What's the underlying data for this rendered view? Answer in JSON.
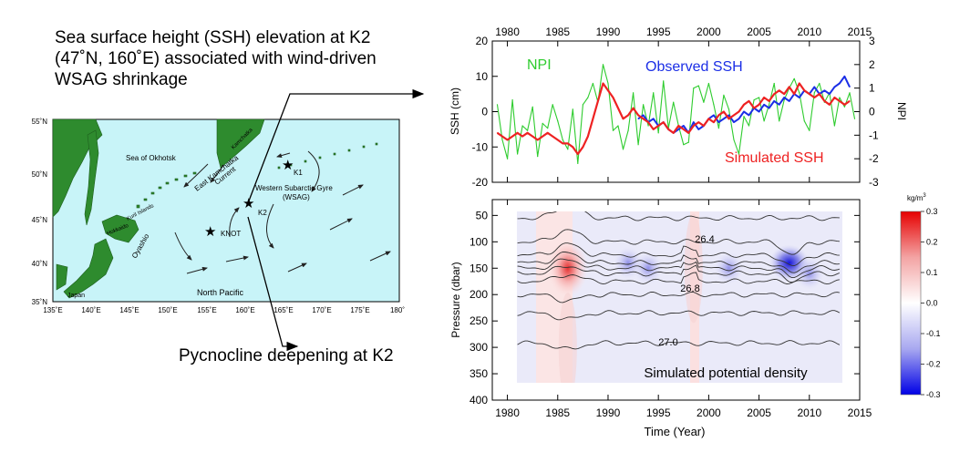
{
  "headline": {
    "line1": "Sea surface height (SSH) elevation at K2",
    "line2": "(47˚N, 160˚E) associated with wind-driven",
    "line3": "WSAG shrinkage"
  },
  "footline": "Pycnocline deepening at K2",
  "colors": {
    "land": "#2e8b2e",
    "ocean": "#c8f4f8",
    "npi": "#2ecc2e",
    "observed": "#1b2ee6",
    "simulated": "#ee2222",
    "contour": "#333333"
  },
  "map": {
    "lat_labels": [
      "55˚N",
      "50˚N",
      "45˚N",
      "40˚N",
      "35˚N"
    ],
    "lon_labels": [
      "135˚E",
      "140˚E",
      "145˚E",
      "150˚E",
      "155˚E",
      "160˚E",
      "165˚E",
      "170˚E",
      "175˚E",
      "180˚"
    ],
    "labels": {
      "okhotsk": "Sea of Okhotsk",
      "kamchatka": "Kamchatka",
      "east_kamchatka_1": "East Kamchatka",
      "east_kamchatka_2": "Current",
      "wsag_1": "Western Subarctic Gyre",
      "wsag_2": "(WSAG)",
      "kuril": "Kuril Islands",
      "hokkaido": "Hokkaido",
      "oyashio": "Oyashio",
      "north_pacific": "North Pacific",
      "japan": "Japan",
      "k1": "K1",
      "k2": "K2",
      "knot": "KNOT"
    }
  },
  "chart_data": [
    {
      "type": "line",
      "title": "",
      "x_top_ticks": [
        "1980",
        "1985",
        "1990",
        "1995",
        "2000",
        "2005",
        "2010",
        "2015"
      ],
      "xlim": [
        1978.5,
        2015
      ],
      "ylabel": "SSH (cm)",
      "ylim": [
        -20,
        20
      ],
      "y_ticks": [
        "20",
        "10",
        "0",
        "-10",
        "-20"
      ],
      "y2label": "NPI",
      "y2lim": [
        -3,
        3
      ],
      "y2_ticks": [
        "3",
        "2",
        "1",
        "0",
        "-1",
        "-2",
        "-3"
      ],
      "legend": [
        "NPI",
        "Observed SSH",
        "Simulated SSH"
      ],
      "series": [
        {
          "name": "NPI",
          "axis": "right",
          "x": [
            1979,
            1979.5,
            1980,
            1980.5,
            1981,
            1981.5,
            1982,
            1982.5,
            1983,
            1983.5,
            1984,
            1984.5,
            1985,
            1985.5,
            1986,
            1986.5,
            1987,
            1987.5,
            1988,
            1988.5,
            1989,
            1989.5,
            1990,
            1990.5,
            1991,
            1991.5,
            1992,
            1992.5,
            1993,
            1993.5,
            1994,
            1994.5,
            1995,
            1995.5,
            1996,
            1996.5,
            1997,
            1997.5,
            1998,
            1998.5,
            1999,
            1999.5,
            2000,
            2000.5,
            2001,
            2001.5,
            2002,
            2002.5,
            2003,
            2003.5,
            2004,
            2004.5,
            2005,
            2005.5,
            2006,
            2006.5,
            2007,
            2007.5,
            2008,
            2008.5,
            2009,
            2009.5,
            2010,
            2010.5,
            2011,
            2011.5,
            2012,
            2012.5,
            2013,
            2013.5,
            2014,
            2014.5
          ],
          "values": [
            0.3,
            -1.2,
            -2.0,
            0.5,
            -1.8,
            -0.6,
            -0.8,
            0.2,
            -1.9,
            -0.5,
            -0.7,
            0.3,
            -0.4,
            -1.2,
            -1.6,
            0.1,
            -2.2,
            0.3,
            0.6,
            1.2,
            0.4,
            2.0,
            1.2,
            -0.8,
            -0.6,
            -1.6,
            -0.8,
            0.8,
            -1.4,
            0.3,
            -0.6,
            0.8,
            -0.9,
            1.3,
            -0.7,
            0.4,
            -0.6,
            -1.4,
            -1.3,
            1.0,
            1.1,
            0.4,
            1.2,
            0.3,
            -0.7,
            0.7,
            0.1,
            -1.2,
            -1.8,
            -0.2,
            -0.6,
            0.5,
            0.6,
            -0.4,
            0.3,
            1.2,
            -0.4,
            0.5,
            1.0,
            1.4,
            0.8,
            -0.4,
            -0.8,
            0.8,
            1.2,
            0.4,
            0.8,
            -0.6,
            0.6,
            0.2,
            0.8,
            -0.3
          ]
        },
        {
          "name": "Observed SSH",
          "axis": "left",
          "x": [
            1993,
            1993.5,
            1994,
            1994.5,
            1995,
            1995.5,
            1996,
            1996.5,
            1997,
            1997.5,
            1998,
            1998.5,
            1999,
            1999.5,
            2000,
            2000.5,
            2001,
            2001.5,
            2002,
            2002.5,
            2003,
            2003.5,
            2004,
            2004.5,
            2005,
            2005.5,
            2006,
            2006.5,
            2007,
            2007.5,
            2008,
            2008.5,
            2009,
            2009.5,
            2010,
            2010.5,
            2011,
            2011.5,
            2012,
            2012.5,
            2013,
            2013.5,
            2014
          ],
          "values": [
            -2,
            -1,
            -3,
            -2,
            -4,
            -3,
            -5,
            -6,
            -5,
            -4,
            -6,
            -3,
            -5,
            -4,
            -2,
            -1,
            -3,
            -2,
            -1,
            -3,
            -2,
            0,
            -1,
            1,
            0,
            2,
            1,
            3,
            2,
            4,
            3,
            5,
            4,
            6,
            5,
            7,
            5,
            6,
            5,
            7,
            8,
            10,
            7
          ]
        },
        {
          "name": "Simulated SSH",
          "axis": "left",
          "x": [
            1979,
            1979.5,
            1980,
            1980.5,
            1981,
            1981.5,
            1982,
            1982.5,
            1983,
            1983.5,
            1984,
            1984.5,
            1985,
            1985.5,
            1986,
            1986.5,
            1987,
            1987.5,
            1988,
            1988.5,
            1989,
            1989.5,
            1990,
            1990.5,
            1991,
            1991.5,
            1992,
            1992.5,
            1993,
            1993.5,
            1994,
            1994.5,
            1995,
            1995.5,
            1996,
            1996.5,
            1997,
            1997.5,
            1998,
            1998.5,
            1999,
            1999.5,
            2000,
            2000.5,
            2001,
            2001.5,
            2002,
            2002.5,
            2003,
            2003.5,
            2004,
            2004.5,
            2005,
            2005.5,
            2006,
            2006.5,
            2007,
            2007.5,
            2008,
            2008.5,
            2009,
            2009.5,
            2010,
            2010.5,
            2011,
            2011.5,
            2012,
            2012.5,
            2013,
            2013.5,
            2014
          ],
          "values": [
            -6,
            -7,
            -8,
            -7,
            -6,
            -7,
            -6,
            -7,
            -8,
            -7,
            -6,
            -7,
            -8,
            -9,
            -9,
            -10,
            -12,
            -10,
            -7,
            -2,
            3,
            8,
            6,
            4,
            1,
            -2,
            -1,
            1,
            -1,
            -2,
            -3,
            -5,
            -4,
            -3,
            -5,
            -6,
            -4,
            -5,
            -6,
            -4,
            -3,
            -4,
            -2,
            -3,
            -1,
            0,
            -2,
            -1,
            0,
            2,
            3,
            1,
            2,
            4,
            3,
            5,
            6,
            5,
            7,
            5,
            8,
            6,
            5,
            4,
            5,
            3,
            2,
            4,
            3,
            2,
            3
          ]
        }
      ]
    },
    {
      "type": "heatmap",
      "title": "Simulated potential density",
      "xlabel": "Time (Year)",
      "x_ticks": [
        "1980",
        "1985",
        "1990",
        "1995",
        "2000",
        "2005",
        "2010",
        "2015"
      ],
      "xlim": [
        1978.5,
        2015
      ],
      "ylabel": "Pressure (dbar)",
      "ylim": [
        400,
        20
      ],
      "y_ticks": [
        "50",
        "100",
        "150",
        "200",
        "250",
        "300",
        "350",
        "400"
      ],
      "contour_labels": [
        "26.4",
        "26.8",
        "27.0"
      ],
      "colorbar": {
        "unit": "kg/m",
        "unit_sup": "3",
        "range": [
          -0.3,
          0.3
        ],
        "ticks": [
          "0.3",
          "0.2",
          "0.1",
          "0.0",
          "-0.1",
          "-0.2",
          "-0.3"
        ]
      },
      "anomalies": [
        {
          "year": 1986,
          "pressure": 150,
          "value": 0.3
        },
        {
          "year": 1986,
          "pressure": 300,
          "value": 0.04
        },
        {
          "year": 1992,
          "pressure": 140,
          "value": -0.08
        },
        {
          "year": 1994,
          "pressure": 150,
          "value": -0.15
        },
        {
          "year": 1998.5,
          "pressure": 150,
          "value": 0.08
        },
        {
          "year": 2002,
          "pressure": 150,
          "value": -0.1
        },
        {
          "year": 2008,
          "pressure": 140,
          "value": -0.3
        },
        {
          "year": 2010,
          "pressure": 160,
          "value": -0.15
        }
      ]
    }
  ]
}
